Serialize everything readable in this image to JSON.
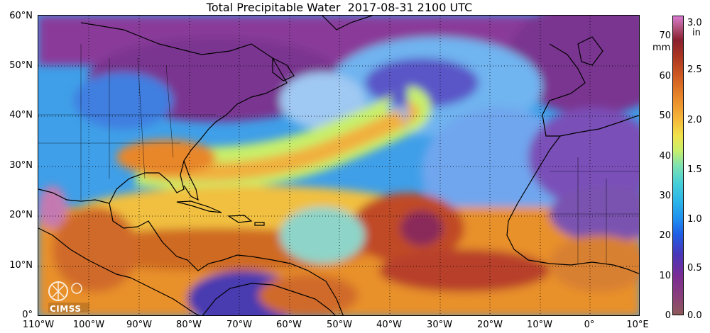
{
  "title": "Total Precipitable Water  2017-08-31 2100 UTC",
  "latitude_labels": [
    "60°N",
    "50°N",
    "40°N",
    "30°N",
    "20°N",
    "10°N",
    "0°"
  ],
  "longitude_labels": [
    "110°W",
    "100°W",
    "90°W",
    "80°W",
    "70°W",
    "60°W",
    "50°W",
    "40°W",
    "30°W",
    "20°W",
    "10°W",
    "0°",
    "10°E"
  ],
  "colorbar": {
    "mm_unit": "mm",
    "in_unit": "in",
    "mm_ticks": [
      "70",
      "60",
      "50",
      "40",
      "30",
      "20",
      "10",
      "0"
    ],
    "in_ticks": [
      "3.0",
      "2.5",
      "2.0",
      "1.5",
      "1.0",
      "0.5",
      "0.0"
    ]
  },
  "logo": {
    "text": "CIMSS"
  },
  "colors": {
    "dry": "#7a2c8f",
    "low": "#2a7be0",
    "mid": "#7fe2b0",
    "moist": "#f0a030",
    "very_moist": "#b03a22",
    "extreme": "#d87ad0"
  }
}
